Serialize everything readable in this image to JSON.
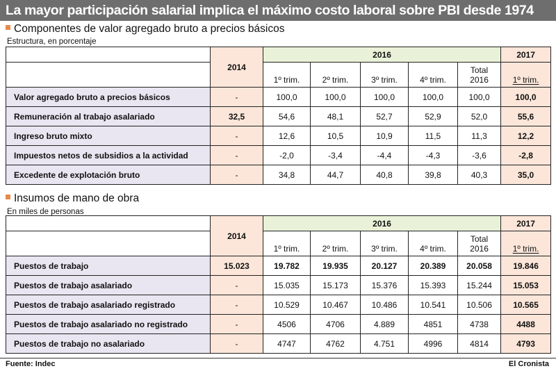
{
  "title": "La mayor participación salarial implica el máximo costo laboral sobre PBI desde 1974",
  "section1": {
    "heading": "Componentes de valor agregado bruto a precios básicos",
    "subtitle": "Estructura, en porcentaje",
    "columns": {
      "y2014": "2014",
      "y2016": "2016",
      "y2017": "2017",
      "q1": "1º trim.",
      "q2": "2º trim.",
      "q3": "3º trim.",
      "q4": "4º trim.",
      "total_line1": "Total",
      "total_line2": "2016",
      "q1_2017": "1º trim."
    },
    "rows": [
      {
        "label": "Valor agregado bruto a precios básicos",
        "v2014": "-",
        "q1": "100,0",
        "q2": "100,0",
        "q3": "100,0",
        "q4": "100,0",
        "total": "100,0",
        "v2017": "100,0"
      },
      {
        "label": "Remuneración al trabajo asalariado",
        "v2014": "32,5",
        "q1": "54,6",
        "q2": "48,1",
        "q3": "52,7",
        "q4": "52,9",
        "total": "52,0",
        "v2017": "55,6"
      },
      {
        "label": "Ingreso bruto mixto",
        "v2014": "-",
        "q1": "12,6",
        "q2": "10,5",
        "q3": "10,9",
        "q4": "11,5",
        "total": "11,3",
        "v2017": "12,2"
      },
      {
        "label": "Impuestos netos de subsidios a la actividad",
        "v2014": "-",
        "q1": "-2,0",
        "q2": "-3,4",
        "q3": "-4,4",
        "q4": "-4,3",
        "total": "-3,6",
        "v2017": "-2,8"
      },
      {
        "label": "Excedente de explotación bruto",
        "v2014": "-",
        "q1": "34,8",
        "q2": "44,7",
        "q3": "40,8",
        "q4": "39,8",
        "total": "40,3",
        "v2017": "35,0"
      }
    ]
  },
  "section2": {
    "heading": "Insumos de mano de obra",
    "subtitle": "En miles de personas",
    "columns": {
      "y2014": "2014",
      "y2016": "2016",
      "y2017": "2017",
      "q1": "1º trim.",
      "q2": "2º trim.",
      "q3": "3º trim.",
      "q4": "4º trim.",
      "total_line1": "Total",
      "total_line2": "2016",
      "q1_2017": "1º trim."
    },
    "rows": [
      {
        "label": "Puestos de trabajo",
        "v2014": "15.023",
        "q1": "19.782",
        "q2": "19.935",
        "q3": "20.127",
        "q4": "20.389",
        "total": "20.058",
        "v2017": "19.846"
      },
      {
        "label": "Puestos de trabajo asalariado",
        "v2014": "-",
        "q1": "15.035",
        "q2": "15.173",
        "q3": "15.376",
        "q4": "15.393",
        "total": "15.244",
        "v2017": "15.053"
      },
      {
        "label": "Puestos de trabajo asalariado registrado",
        "v2014": "-",
        "q1": "10.529",
        "q2": "10.467",
        "q3": "10.486",
        "q4": "10.541",
        "total": "10.506",
        "v2017": "10.565"
      },
      {
        "label": "Puestos de trabajo asalariado no registrado",
        "v2014": "-",
        "q1": "4506",
        "q2": "4706",
        "q3": "4.889",
        "q4": "4851",
        "total": "4738",
        "v2017": "4488"
      },
      {
        "label": "Puestos de trabajo no asalariado",
        "v2014": "-",
        "q1": "4747",
        "q2": "4762",
        "q3": "4.751",
        "q4": "4996",
        "total": "4814",
        "v2017": "4793"
      }
    ]
  },
  "footer": {
    "source": "Fuente: Indec",
    "brand": "El Cronista"
  },
  "colors": {
    "title_bg": "#6e6e6e",
    "accent_square": "#e8894a",
    "label_col_bg": "#e9e5f1",
    "year_col_bg": "#fbe6d9",
    "header_2016_bg": "#e9f2d8"
  }
}
